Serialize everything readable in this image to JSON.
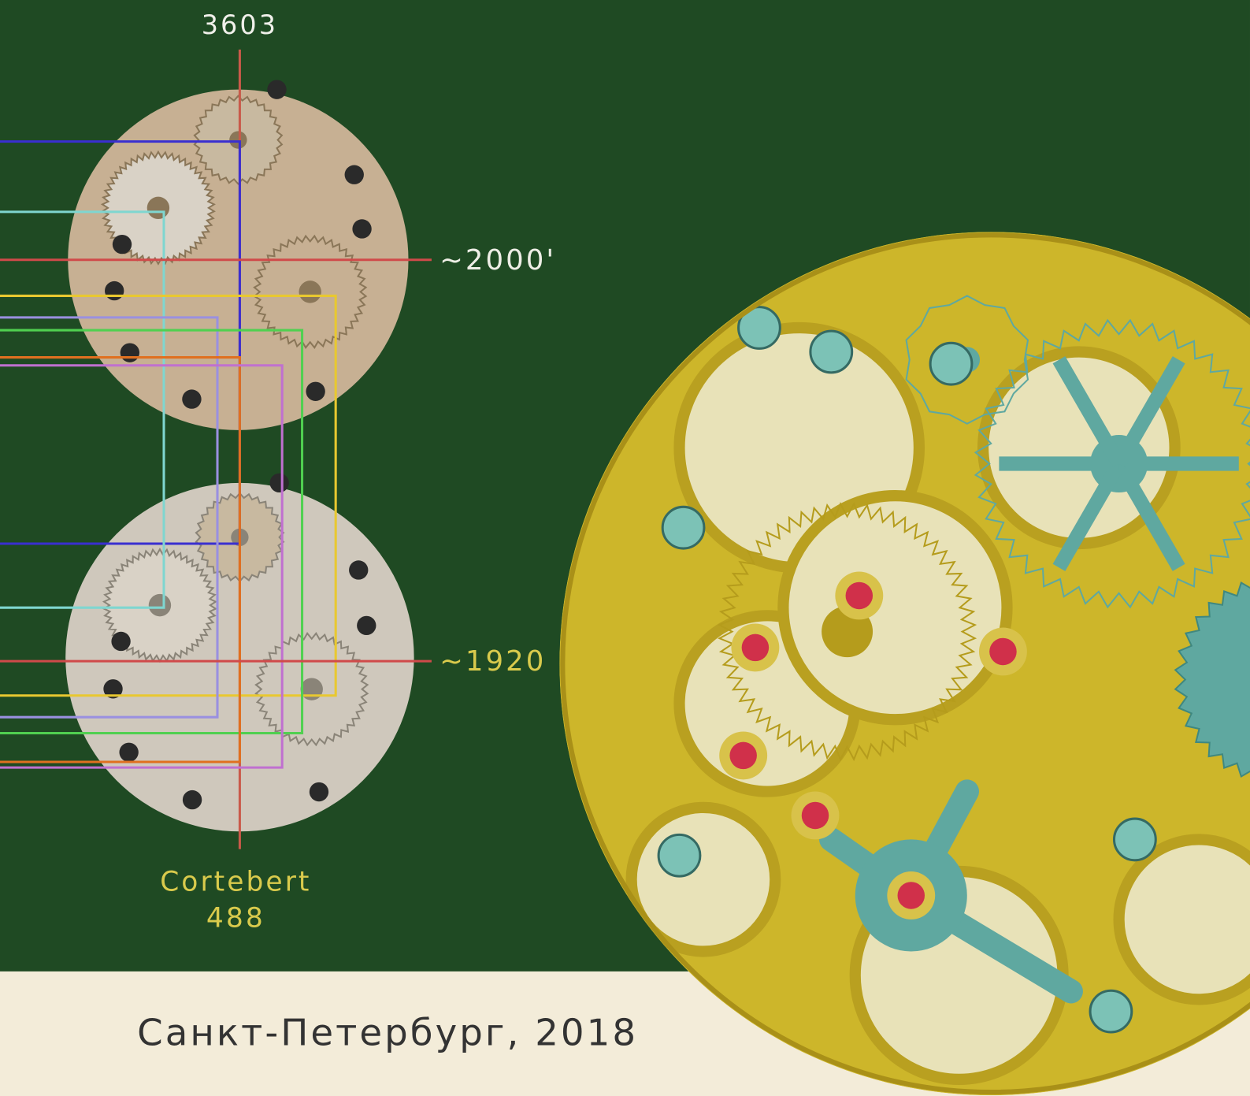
{
  "labels": {
    "top": "3603",
    "upper_date": "~2000'",
    "lower_date": "~1920",
    "maker": "Cortebert",
    "caliber": "488"
  },
  "footer": "Санкт-Петербург, 2018"
}
